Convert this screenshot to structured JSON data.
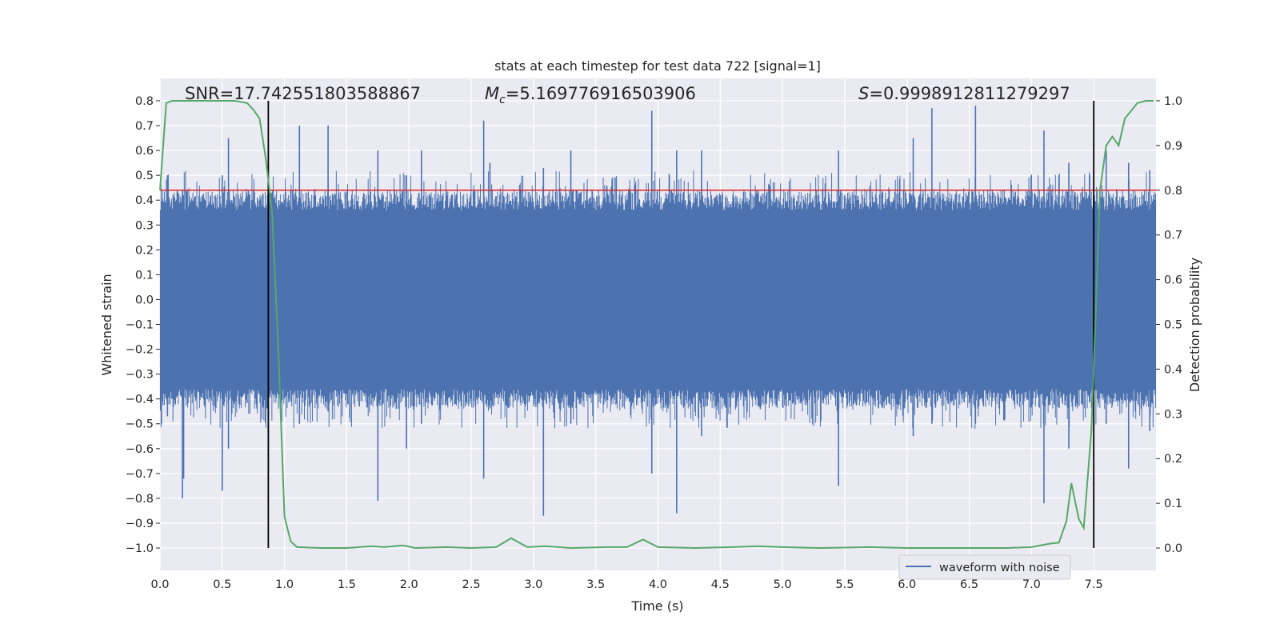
{
  "chart_data": {
    "type": "line",
    "title": "stats at each timestep for test data 722 [signal=1]",
    "xlabel": "Time (s)",
    "ylabel": "Whitened strain",
    "y2label": "Detection probability",
    "xlim": [
      0.0,
      8.0
    ],
    "ylim": [
      -1.09,
      0.89
    ],
    "y2lim": [
      -0.05,
      1.05
    ],
    "xticks": [
      "0.0",
      "0.5",
      "1.0",
      "1.5",
      "2.0",
      "2.5",
      "3.0",
      "3.5",
      "4.0",
      "4.5",
      "5.0",
      "5.5",
      "6.0",
      "6.5",
      "7.0",
      "7.5"
    ],
    "yticks": [
      "0.8",
      "0.7",
      "0.6",
      "0.5",
      "0.4",
      "0.3",
      "0.2",
      "0.1",
      "0.0",
      "−0.1",
      "−0.2",
      "−0.3",
      "−0.4",
      "−0.5",
      "−0.6",
      "−0.7",
      "−0.8",
      "−0.9",
      "−1.0"
    ],
    "y2ticks": [
      "1.0",
      "0.9",
      "0.8",
      "0.7",
      "0.6",
      "0.5",
      "0.4",
      "0.3",
      "0.2",
      "0.1",
      "0.0"
    ],
    "grid": true,
    "annotations": {
      "snr": "SNR=17.742551803588867",
      "mc": "=5.169776916503906",
      "mc_symbol": "M",
      "mc_sub": "c",
      "s": "=0.9998912811279297",
      "s_symbol": "S"
    },
    "legend": {
      "placement": "lower-right",
      "entries": [
        "waveform with noise"
      ]
    },
    "threshold_line": {
      "axis": "y2",
      "value": 0.8,
      "color": "#d62728"
    },
    "vertical_markers": [
      0.87,
      7.5
    ],
    "series": [
      {
        "name": "waveform with noise",
        "axis": "y",
        "color": "#4c72b0",
        "description": "noisy whitened strain, dense band",
        "band_core": 0.27,
        "band_peak_min": 0.36,
        "band_peak_max": 0.52,
        "spikes": [
          [
            0.06,
            0.5,
            -0.47
          ],
          [
            0.18,
            0.44,
            -0.8
          ],
          [
            0.19,
            0.42,
            -0.72
          ],
          [
            0.5,
            0.5,
            -0.77
          ],
          [
            0.55,
            0.65,
            -0.6
          ],
          [
            0.87,
            0.45,
            -0.7
          ],
          [
            1.12,
            0.7,
            -0.5
          ],
          [
            1.35,
            0.7,
            -0.45
          ],
          [
            1.75,
            0.6,
            -0.81
          ],
          [
            1.98,
            0.5,
            -0.6
          ],
          [
            2.1,
            0.6,
            -0.5
          ],
          [
            2.6,
            0.72,
            -0.72
          ],
          [
            2.65,
            0.55,
            0.09
          ],
          [
            3.08,
            0.53,
            -0.87
          ],
          [
            3.3,
            0.6,
            -0.5
          ],
          [
            3.95,
            0.76,
            -0.7
          ],
          [
            4.15,
            0.6,
            -0.86
          ],
          [
            4.35,
            0.6,
            -0.55
          ],
          [
            5.45,
            0.6,
            -0.75
          ],
          [
            6.05,
            0.65,
            -0.55
          ],
          [
            6.2,
            0.77,
            -0.5
          ],
          [
            6.55,
            0.78,
            -0.5
          ],
          [
            7.1,
            0.68,
            -0.82
          ],
          [
            7.3,
            0.55,
            -0.6
          ],
          [
            7.6,
            0.6,
            -0.5
          ],
          [
            7.78,
            0.55,
            -0.68
          ],
          [
            7.95,
            0.52,
            -0.53
          ]
        ]
      },
      {
        "name": "",
        "axis": "y2",
        "color": "#55a868",
        "points": [
          [
            0.0,
            0.8
          ],
          [
            0.05,
            0.995
          ],
          [
            0.1,
            1.0
          ],
          [
            0.2,
            1.0
          ],
          [
            0.4,
            1.0
          ],
          [
            0.6,
            1.0
          ],
          [
            0.7,
            0.995
          ],
          [
            0.75,
            0.98
          ],
          [
            0.8,
            0.96
          ],
          [
            0.85,
            0.87
          ],
          [
            0.9,
            0.75
          ],
          [
            0.95,
            0.45
          ],
          [
            1.0,
            0.07
          ],
          [
            1.05,
            0.015
          ],
          [
            1.1,
            0.002
          ],
          [
            1.3,
            0.0
          ],
          [
            1.5,
            0.0
          ],
          [
            1.7,
            0.004
          ],
          [
            1.8,
            0.002
          ],
          [
            1.95,
            0.006
          ],
          [
            2.05,
            0.0
          ],
          [
            2.3,
            0.002
          ],
          [
            2.5,
            0.0
          ],
          [
            2.7,
            0.002
          ],
          [
            2.82,
            0.022
          ],
          [
            2.95,
            0.002
          ],
          [
            3.1,
            0.004
          ],
          [
            3.3,
            0.0
          ],
          [
            3.6,
            0.002
          ],
          [
            3.75,
            0.002
          ],
          [
            3.88,
            0.019
          ],
          [
            4.0,
            0.002
          ],
          [
            4.3,
            0.0
          ],
          [
            4.6,
            0.002
          ],
          [
            4.8,
            0.004
          ],
          [
            5.0,
            0.002
          ],
          [
            5.3,
            0.0
          ],
          [
            5.7,
            0.002
          ],
          [
            6.0,
            0.0
          ],
          [
            6.4,
            0.0
          ],
          [
            6.8,
            0.0
          ],
          [
            7.0,
            0.002
          ],
          [
            7.15,
            0.01
          ],
          [
            7.22,
            0.012
          ],
          [
            7.28,
            0.06
          ],
          [
            7.32,
            0.145
          ],
          [
            7.38,
            0.065
          ],
          [
            7.42,
            0.045
          ],
          [
            7.48,
            0.26
          ],
          [
            7.5,
            0.4
          ],
          [
            7.55,
            0.8
          ],
          [
            7.6,
            0.9
          ],
          [
            7.65,
            0.92
          ],
          [
            7.7,
            0.9
          ],
          [
            7.75,
            0.96
          ],
          [
            7.85,
            0.995
          ],
          [
            7.92,
            1.0
          ],
          [
            7.98,
            1.0
          ]
        ]
      }
    ]
  }
}
